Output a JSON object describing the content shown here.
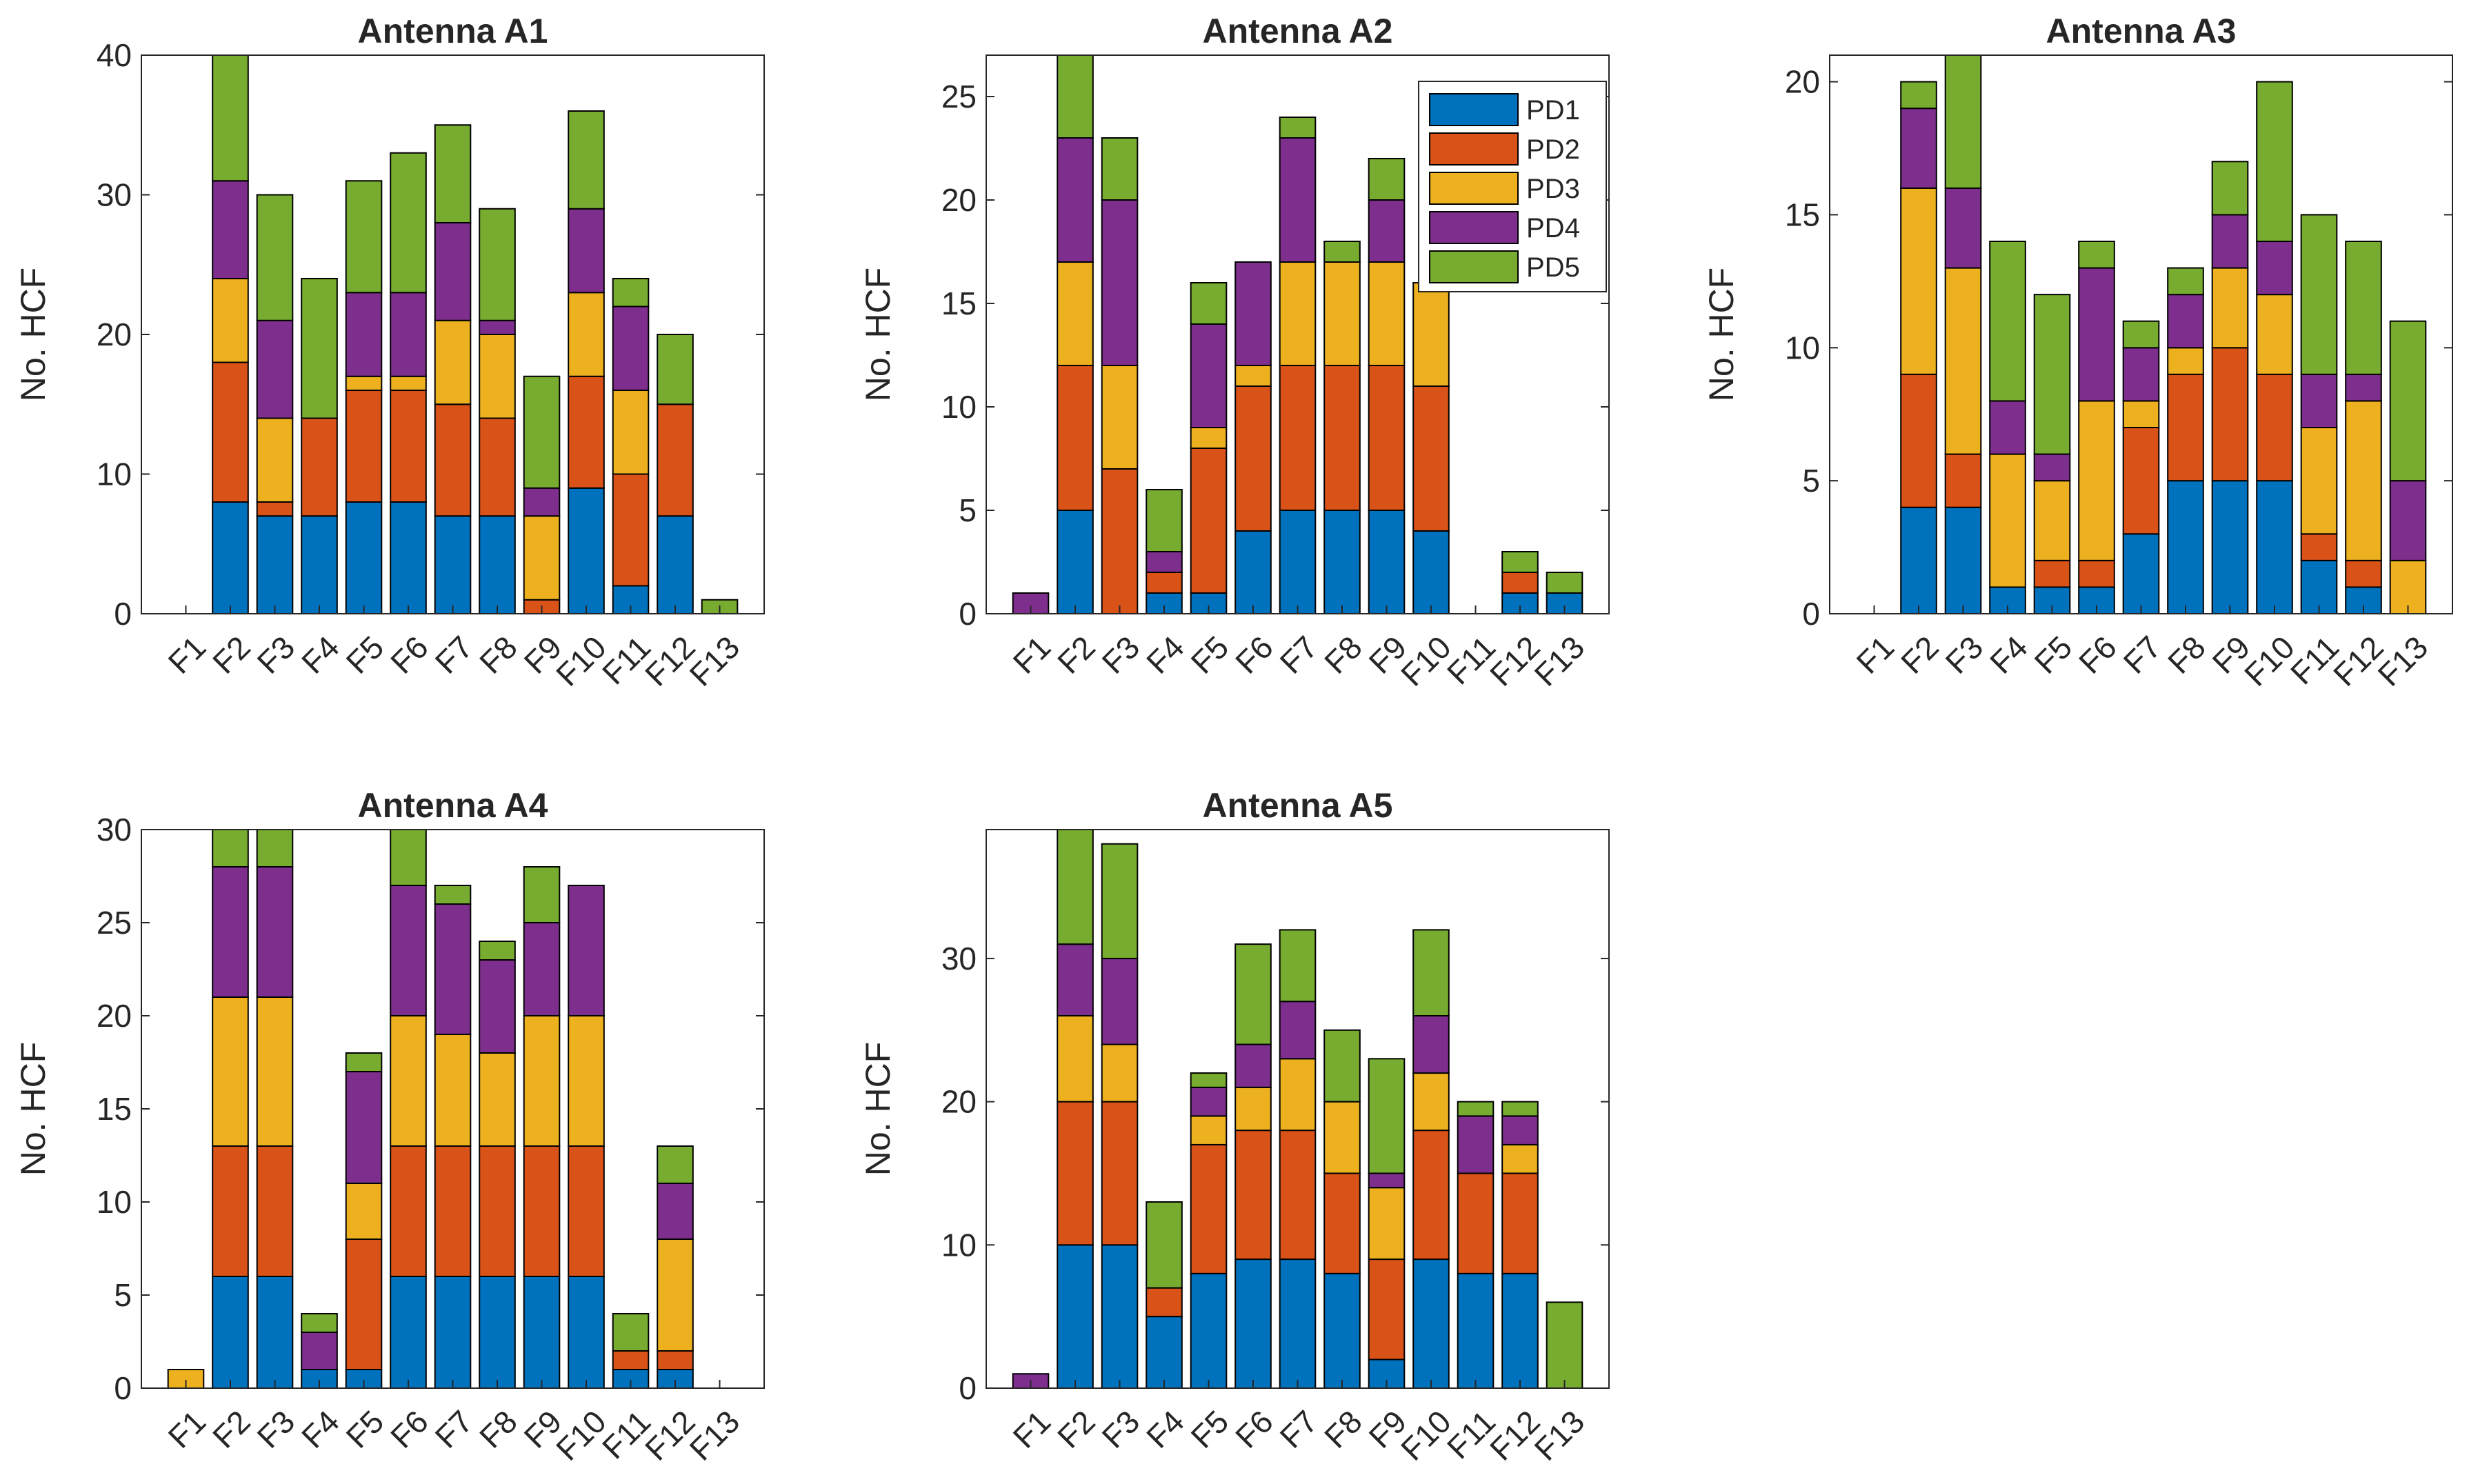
{
  "colors": {
    "PD1": "#0072bd",
    "PD2": "#d95319",
    "PD3": "#edb120",
    "PD4": "#7e2f8e",
    "PD5": "#77ac30"
  },
  "chart_data": [
    {
      "type": "stacked-bar",
      "title": "Antenna A1",
      "xlabel": "",
      "ylabel": "No. HCF",
      "ylim": [
        0,
        40
      ],
      "yticks": [
        0,
        10,
        20,
        30,
        40
      ],
      "categories": [
        "F1",
        "F2",
        "F3",
        "F4",
        "F5",
        "F6",
        "F7",
        "F8",
        "F9",
        "F10",
        "F11",
        "F12",
        "F13"
      ],
      "series": [
        {
          "name": "PD1",
          "values": [
            0,
            8,
            7,
            7,
            8,
            8,
            7,
            7,
            0,
            9,
            2,
            7,
            0
          ]
        },
        {
          "name": "PD2",
          "values": [
            0,
            10,
            1,
            7,
            8,
            8,
            8,
            7,
            1,
            8,
            8,
            8,
            0
          ]
        },
        {
          "name": "PD3",
          "values": [
            0,
            6,
            6,
            0,
            1,
            1,
            6,
            6,
            6,
            6,
            6,
            0,
            0
          ]
        },
        {
          "name": "PD4",
          "values": [
            0,
            7,
            7,
            0,
            6,
            6,
            7,
            1,
            2,
            6,
            6,
            0,
            0
          ]
        },
        {
          "name": "PD5",
          "values": [
            0,
            9,
            9,
            10,
            8,
            10,
            7,
            8,
            8,
            7,
            2,
            5,
            1
          ]
        }
      ],
      "legend": null
    },
    {
      "type": "stacked-bar",
      "title": "Antenna A2",
      "xlabel": "",
      "ylabel": "No. HCF",
      "ylim": [
        0,
        27
      ],
      "yticks": [
        0,
        5,
        10,
        15,
        20,
        25
      ],
      "categories": [
        "F1",
        "F2",
        "F3",
        "F4",
        "F5",
        "F6",
        "F7",
        "F8",
        "F9",
        "F10",
        "F11",
        "F12",
        "F13"
      ],
      "series": [
        {
          "name": "PD1",
          "values": [
            0,
            5,
            0,
            1,
            1,
            4,
            5,
            5,
            5,
            4,
            0,
            1,
            1
          ]
        },
        {
          "name": "PD2",
          "values": [
            0,
            7,
            7,
            1,
            7,
            7,
            7,
            7,
            7,
            7,
            0,
            1,
            0
          ]
        },
        {
          "name": "PD3",
          "values": [
            0,
            5,
            5,
            0,
            1,
            1,
            5,
            5,
            5,
            5,
            0,
            0,
            0
          ]
        },
        {
          "name": "PD4",
          "values": [
            1,
            6,
            8,
            1,
            5,
            5,
            6,
            0,
            3,
            0,
            0,
            0,
            0
          ]
        },
        {
          "name": "PD5",
          "values": [
            0,
            5,
            3,
            3,
            2,
            0,
            1,
            1,
            2,
            0,
            0,
            1,
            1
          ]
        }
      ],
      "legend": {
        "position": "top-right",
        "entries": [
          "PD1",
          "PD2",
          "PD3",
          "PD4",
          "PD5"
        ]
      }
    },
    {
      "type": "stacked-bar",
      "title": "Antenna A3",
      "xlabel": "",
      "ylabel": "No. HCF",
      "ylim": [
        0,
        21
      ],
      "yticks": [
        0,
        5,
        10,
        15,
        20
      ],
      "categories": [
        "F1",
        "F2",
        "F3",
        "F4",
        "F5",
        "F6",
        "F7",
        "F8",
        "F9",
        "F10",
        "F11",
        "F12",
        "F13"
      ],
      "series": [
        {
          "name": "PD1",
          "values": [
            0,
            4,
            4,
            1,
            1,
            1,
            3,
            5,
            5,
            5,
            2,
            1,
            0
          ]
        },
        {
          "name": "PD2",
          "values": [
            0,
            5,
            2,
            0,
            1,
            1,
            4,
            4,
            5,
            4,
            1,
            1,
            0
          ]
        },
        {
          "name": "PD3",
          "values": [
            0,
            7,
            7,
            5,
            3,
            6,
            1,
            1,
            3,
            3,
            4,
            6,
            2
          ]
        },
        {
          "name": "PD4",
          "values": [
            0,
            3,
            3,
            2,
            1,
            5,
            2,
            2,
            2,
            2,
            2,
            1,
            3
          ]
        },
        {
          "name": "PD5",
          "values": [
            0,
            1,
            5,
            6,
            6,
            1,
            1,
            1,
            2,
            6,
            6,
            5,
            6
          ]
        }
      ],
      "legend": null
    },
    {
      "type": "stacked-bar",
      "title": "Antenna A4",
      "xlabel": "",
      "ylabel": "No. HCF",
      "ylim": [
        0,
        30
      ],
      "yticks": [
        0,
        5,
        10,
        15,
        20,
        25,
        30
      ],
      "categories": [
        "F1",
        "F2",
        "F3",
        "F4",
        "F5",
        "F6",
        "F7",
        "F8",
        "F9",
        "F10",
        "F11",
        "F12",
        "F13"
      ],
      "series": [
        {
          "name": "PD1",
          "values": [
            0,
            6,
            6,
            1,
            1,
            6,
            6,
            6,
            6,
            6,
            1,
            1,
            0
          ]
        },
        {
          "name": "PD2",
          "values": [
            0,
            7,
            7,
            0,
            7,
            7,
            7,
            7,
            7,
            7,
            1,
            1,
            0
          ]
        },
        {
          "name": "PD3",
          "values": [
            1,
            8,
            8,
            0,
            3,
            7,
            6,
            5,
            7,
            7,
            0,
            6,
            0
          ]
        },
        {
          "name": "PD4",
          "values": [
            0,
            7,
            7,
            2,
            6,
            7,
            7,
            5,
            5,
            7,
            0,
            3,
            0
          ]
        },
        {
          "name": "PD5",
          "values": [
            0,
            2,
            2,
            1,
            1,
            3,
            1,
            1,
            3,
            0,
            2,
            2,
            0
          ]
        }
      ],
      "legend": null
    },
    {
      "type": "stacked-bar",
      "title": "Antenna A5",
      "xlabel": "",
      "ylabel": "No. HCF",
      "ylim": [
        0,
        39
      ],
      "yticks": [
        0,
        10,
        20,
        30
      ],
      "categories": [
        "F1",
        "F2",
        "F3",
        "F4",
        "F5",
        "F6",
        "F7",
        "F8",
        "F9",
        "F10",
        "F11",
        "F12",
        "F13"
      ],
      "series": [
        {
          "name": "PD1",
          "values": [
            0,
            10,
            10,
            5,
            8,
            9,
            9,
            8,
            2,
            9,
            8,
            8,
            0
          ]
        },
        {
          "name": "PD2",
          "values": [
            0,
            10,
            10,
            2,
            9,
            9,
            9,
            7,
            7,
            9,
            7,
            7,
            0
          ]
        },
        {
          "name": "PD3",
          "values": [
            0,
            6,
            4,
            0,
            2,
            3,
            5,
            5,
            5,
            4,
            0,
            2,
            0
          ]
        },
        {
          "name": "PD4",
          "values": [
            1,
            5,
            6,
            0,
            2,
            3,
            4,
            0,
            1,
            4,
            4,
            2,
            0
          ]
        },
        {
          "name": "PD5",
          "values": [
            0,
            8,
            8,
            6,
            1,
            7,
            5,
            5,
            8,
            6,
            1,
            1,
            6
          ]
        }
      ],
      "legend": null
    }
  ]
}
